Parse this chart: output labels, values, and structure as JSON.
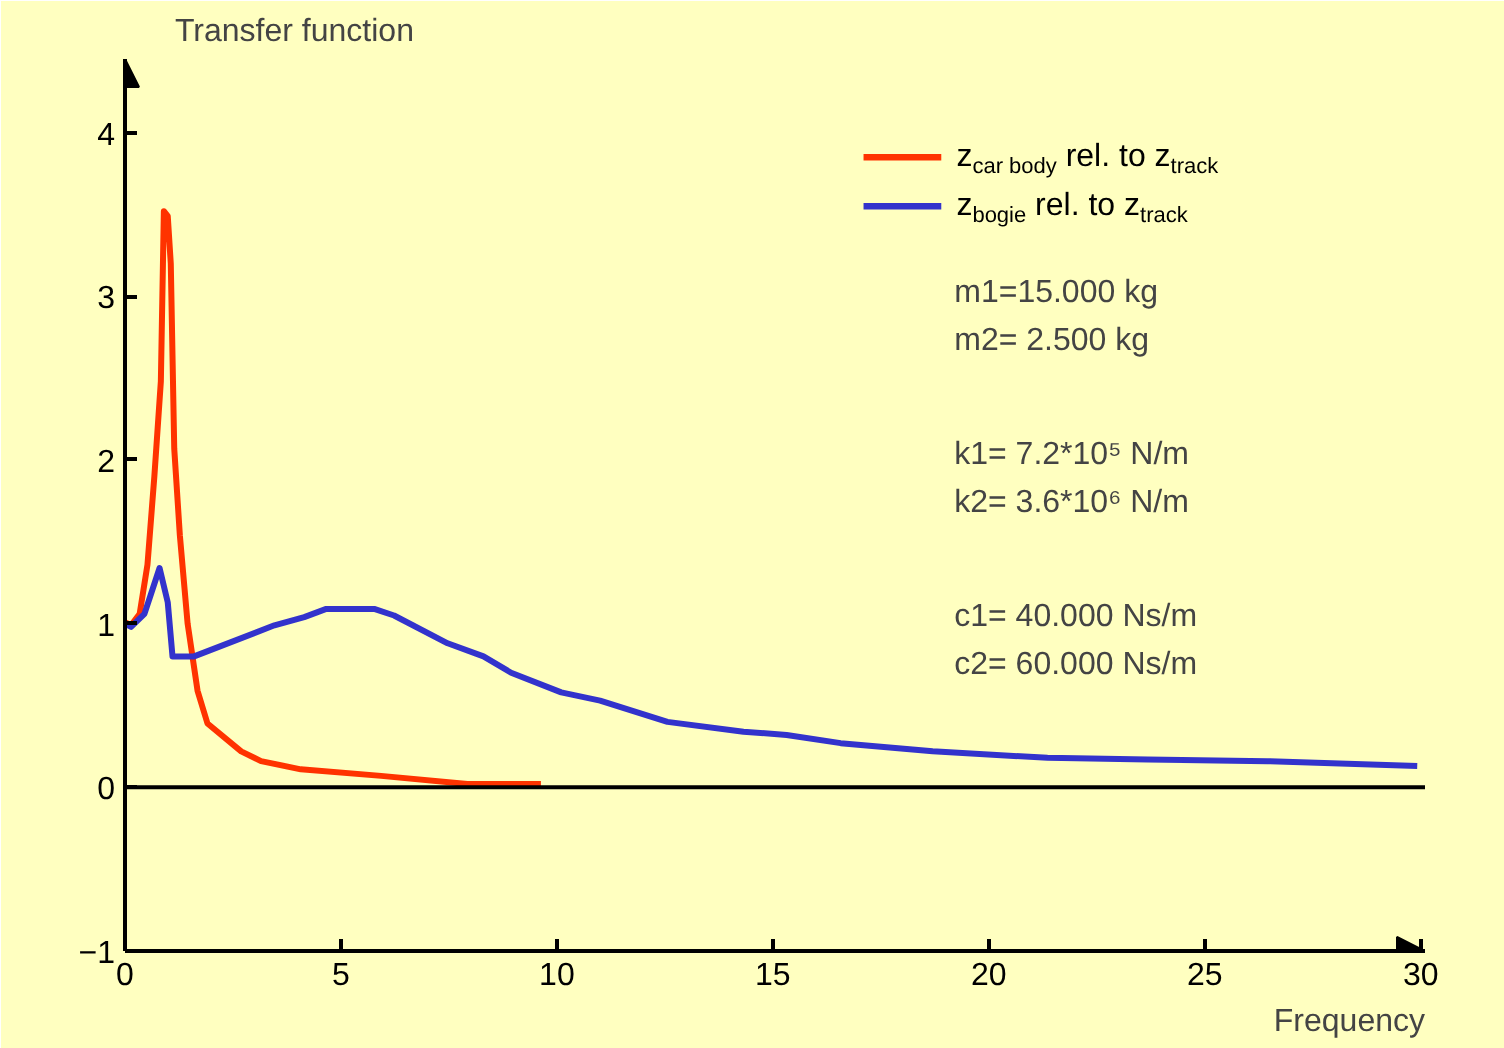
{
  "chart_data": {
    "type": "line",
    "xlabel": "Frequency",
    "ylabel": "Transfer function",
    "xlim": [
      0,
      30.1
    ],
    "ylim": [
      -1,
      4.45
    ],
    "xticks": [
      0,
      5,
      10,
      15,
      20,
      25,
      30
    ],
    "yticks": [
      -1,
      0,
      1,
      2,
      3,
      4
    ],
    "grid": false,
    "legend": "top right",
    "marker": "none",
    "line_style": "solid",
    "ref_lines": [
      {
        "axis": "y",
        "value": 0,
        "color": "#000000"
      }
    ],
    "annotations": [
      "m1=15.000 kg",
      "m2=  2.500 kg",
      "k1= 7.2*10⁵ N/m",
      "k2= 3.6*10⁶ N/m",
      "c1= 40.000 Ns/m",
      "c2= 60.000 Ns/m"
    ],
    "series": [
      {
        "name": "z$_{car body}$ rel. to z$_{track}$",
        "color": "#ff3300",
        "x": [
          0,
          0.14,
          0.34,
          0.52,
          0.68,
          0.83,
          0.9,
          0.99,
          1.06,
          1.14,
          1.27,
          1.45,
          1.68,
          1.91,
          2.69,
          3.15,
          4.07,
          5.93,
          7.93,
          9.63
        ],
        "values": [
          1.01,
          0.99,
          1.06,
          1.36,
          1.9,
          2.48,
          3.52,
          3.49,
          3.2,
          2.07,
          1.54,
          1.0,
          0.59,
          0.39,
          0.22,
          0.16,
          0.11,
          0.07,
          0.02,
          0.02
        ]
      },
      {
        "name": "z$_{bogie}$ rel. to z$_{track}$",
        "color": "#3333cc",
        "x": [
          0,
          0.14,
          0.45,
          0.6,
          0.8,
          0.99,
          1.1,
          1.6,
          3.46,
          4.15,
          4.66,
          5.77,
          6.23,
          7.47,
          8.3,
          8.94,
          10.1,
          11.0,
          12.56,
          14.32,
          15.32,
          16.57,
          18.7,
          21.36,
          23.68,
          26.45,
          29.92
        ],
        "values": [
          1.0,
          0.98,
          1.06,
          1.18,
          1.34,
          1.13,
          0.8,
          0.8,
          0.99,
          1.04,
          1.09,
          1.09,
          1.05,
          0.88,
          0.8,
          0.7,
          0.58,
          0.53,
          0.4,
          0.34,
          0.32,
          0.27,
          0.22,
          0.18,
          0.17,
          0.16,
          0.13
        ]
      }
    ]
  }
}
